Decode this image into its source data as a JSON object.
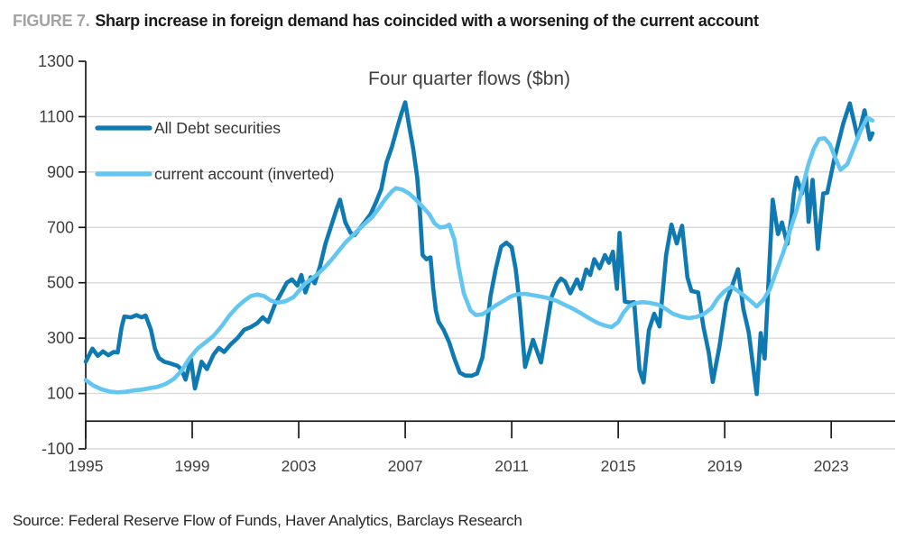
{
  "figure": {
    "label": "FIGURE 7.",
    "title": "Sharp increase in foreign demand has coincided with a worsening of the current account"
  },
  "source": "Source: Federal Reserve Flow of Funds, Haver Analytics, Barclays Research",
  "colors": {
    "dark_series": "#0f79b2",
    "light_series": "#62c6f0",
    "gridline": "#d9d9d9",
    "axis": "#1a1a1a",
    "tick_text": "#3f3f3f",
    "figure_label_gray": "#a3a3a3"
  },
  "chart_data": {
    "type": "line",
    "title": "Four quarter flows ($bn)",
    "xlabel": "",
    "ylabel": "",
    "x_axis": {
      "range": [
        1995,
        2025.4
      ],
      "ticks": [
        1995,
        1999,
        2003,
        2007,
        2011,
        2015,
        2019,
        2023
      ]
    },
    "y_axis": {
      "range": [
        -100,
        1300
      ],
      "ticks": [
        -100,
        100,
        300,
        500,
        700,
        900,
        1100,
        1300
      ],
      "gridlines": true,
      "zero_axis_line": true
    },
    "legend_position": "top-left-inside",
    "series": [
      {
        "name": "All Debt securities",
        "color": "#0f79b2",
        "points": [
          [
            1995.0,
            215
          ],
          [
            1995.25,
            262
          ],
          [
            1995.45,
            236
          ],
          [
            1995.65,
            252
          ],
          [
            1995.85,
            238
          ],
          [
            1996.05,
            250
          ],
          [
            1996.2,
            248
          ],
          [
            1996.35,
            340
          ],
          [
            1996.45,
            378
          ],
          [
            1996.7,
            375
          ],
          [
            1996.9,
            383
          ],
          [
            1997.1,
            375
          ],
          [
            1997.25,
            382
          ],
          [
            1997.45,
            330
          ],
          [
            1997.6,
            262
          ],
          [
            1997.75,
            228
          ],
          [
            1997.95,
            215
          ],
          [
            1998.2,
            208
          ],
          [
            1998.45,
            200
          ],
          [
            1998.6,
            186
          ],
          [
            1998.75,
            150
          ],
          [
            1998.95,
            225
          ],
          [
            1999.1,
            118
          ],
          [
            1999.35,
            215
          ],
          [
            1999.55,
            188
          ],
          [
            1999.8,
            240
          ],
          [
            2000.0,
            265
          ],
          [
            2000.2,
            250
          ],
          [
            2000.45,
            278
          ],
          [
            2000.7,
            300
          ],
          [
            2000.95,
            330
          ],
          [
            2001.2,
            340
          ],
          [
            2001.45,
            355
          ],
          [
            2001.65,
            375
          ],
          [
            2001.85,
            358
          ],
          [
            2002.1,
            420
          ],
          [
            2002.3,
            455
          ],
          [
            2002.55,
            500
          ],
          [
            2002.75,
            512
          ],
          [
            2002.95,
            490
          ],
          [
            2003.1,
            528
          ],
          [
            2003.25,
            465
          ],
          [
            2003.45,
            520
          ],
          [
            2003.6,
            498
          ],
          [
            2003.8,
            560
          ],
          [
            2004.0,
            640
          ],
          [
            2004.2,
            700
          ],
          [
            2004.4,
            760
          ],
          [
            2004.55,
            800
          ],
          [
            2004.75,
            718
          ],
          [
            2004.95,
            680
          ],
          [
            2005.1,
            672
          ],
          [
            2005.3,
            698
          ],
          [
            2005.5,
            722
          ],
          [
            2005.7,
            748
          ],
          [
            2005.9,
            790
          ],
          [
            2006.1,
            838
          ],
          [
            2006.3,
            935
          ],
          [
            2006.5,
            990
          ],
          [
            2006.7,
            1060
          ],
          [
            2006.85,
            1110
          ],
          [
            2007.0,
            1152
          ],
          [
            2007.15,
            1065
          ],
          [
            2007.3,
            985
          ],
          [
            2007.45,
            880
          ],
          [
            2007.55,
            760
          ],
          [
            2007.65,
            600
          ],
          [
            2007.8,
            585
          ],
          [
            2007.95,
            592
          ],
          [
            2008.05,
            480
          ],
          [
            2008.15,
            400
          ],
          [
            2008.25,
            360
          ],
          [
            2008.45,
            328
          ],
          [
            2008.65,
            285
          ],
          [
            2008.85,
            225
          ],
          [
            2009.05,
            175
          ],
          [
            2009.25,
            165
          ],
          [
            2009.5,
            164
          ],
          [
            2009.7,
            172
          ],
          [
            2009.9,
            230
          ],
          [
            2010.05,
            330
          ],
          [
            2010.2,
            450
          ],
          [
            2010.4,
            550
          ],
          [
            2010.6,
            630
          ],
          [
            2010.8,
            645
          ],
          [
            2011.0,
            628
          ],
          [
            2011.15,
            550
          ],
          [
            2011.3,
            420
          ],
          [
            2011.5,
            196
          ],
          [
            2011.8,
            294
          ],
          [
            2012.1,
            212
          ],
          [
            2012.3,
            330
          ],
          [
            2012.5,
            450
          ],
          [
            2012.7,
            498
          ],
          [
            2012.85,
            515
          ],
          [
            2013.0,
            505
          ],
          [
            2013.2,
            462
          ],
          [
            2013.45,
            512
          ],
          [
            2013.6,
            478
          ],
          [
            2013.8,
            548
          ],
          [
            2013.95,
            528
          ],
          [
            2014.1,
            585
          ],
          [
            2014.3,
            552
          ],
          [
            2014.5,
            600
          ],
          [
            2014.65,
            572
          ],
          [
            2014.8,
            612
          ],
          [
            2014.95,
            478
          ],
          [
            2015.05,
            680
          ],
          [
            2015.25,
            432
          ],
          [
            2015.45,
            428
          ],
          [
            2015.6,
            430
          ],
          [
            2015.8,
            186
          ],
          [
            2015.95,
            140
          ],
          [
            2016.15,
            328
          ],
          [
            2016.35,
            388
          ],
          [
            2016.55,
            342
          ],
          [
            2016.8,
            600
          ],
          [
            2017.0,
            710
          ],
          [
            2017.2,
            642
          ],
          [
            2017.4,
            706
          ],
          [
            2017.6,
            520
          ],
          [
            2017.75,
            470
          ],
          [
            2018.0,
            465
          ],
          [
            2018.2,
            340
          ],
          [
            2018.4,
            247
          ],
          [
            2018.55,
            142
          ],
          [
            2018.8,
            270
          ],
          [
            2019.05,
            428
          ],
          [
            2019.3,
            495
          ],
          [
            2019.5,
            549
          ],
          [
            2019.7,
            406
          ],
          [
            2019.9,
            322
          ],
          [
            2020.2,
            98
          ],
          [
            2020.35,
            318
          ],
          [
            2020.5,
            226
          ],
          [
            2020.8,
            800
          ],
          [
            2021.0,
            676
          ],
          [
            2021.15,
            718
          ],
          [
            2021.35,
            640
          ],
          [
            2021.5,
            730
          ],
          [
            2021.6,
            825
          ],
          [
            2021.7,
            880
          ],
          [
            2021.9,
            822
          ],
          [
            2022.05,
            885
          ],
          [
            2022.15,
            720
          ],
          [
            2022.3,
            872
          ],
          [
            2022.5,
            622
          ],
          [
            2022.7,
            822
          ],
          [
            2022.85,
            825
          ],
          [
            2023.1,
            940
          ],
          [
            2023.45,
            1075
          ],
          [
            2023.7,
            1148
          ],
          [
            2024.0,
            1022
          ],
          [
            2024.25,
            1123
          ],
          [
            2024.45,
            1018
          ],
          [
            2024.55,
            1040
          ]
        ]
      },
      {
        "name": "current account (inverted)",
        "color": "#62c6f0",
        "points": [
          [
            1995.0,
            148
          ],
          [
            1995.3,
            128
          ],
          [
            1995.6,
            115
          ],
          [
            1995.9,
            107
          ],
          [
            1996.2,
            104
          ],
          [
            1996.5,
            106
          ],
          [
            1996.8,
            111
          ],
          [
            1997.1,
            114
          ],
          [
            1997.4,
            119
          ],
          [
            1997.7,
            124
          ],
          [
            1998.0,
            134
          ],
          [
            1998.3,
            152
          ],
          [
            1998.6,
            182
          ],
          [
            1998.9,
            228
          ],
          [
            1999.2,
            262
          ],
          [
            1999.5,
            285
          ],
          [
            1999.8,
            308
          ],
          [
            2000.1,
            342
          ],
          [
            2000.4,
            382
          ],
          [
            2000.7,
            414
          ],
          [
            2000.95,
            435
          ],
          [
            2001.2,
            452
          ],
          [
            2001.45,
            458
          ],
          [
            2001.7,
            452
          ],
          [
            2001.95,
            436
          ],
          [
            2002.2,
            428
          ],
          [
            2002.5,
            433
          ],
          [
            2002.8,
            448
          ],
          [
            2003.0,
            470
          ],
          [
            2003.25,
            498
          ],
          [
            2003.5,
            515
          ],
          [
            2003.75,
            535
          ],
          [
            2004.0,
            558
          ],
          [
            2004.25,
            585
          ],
          [
            2004.5,
            615
          ],
          [
            2004.75,
            645
          ],
          [
            2005.0,
            668
          ],
          [
            2005.25,
            692
          ],
          [
            2005.5,
            715
          ],
          [
            2005.75,
            736
          ],
          [
            2006.0,
            768
          ],
          [
            2006.25,
            802
          ],
          [
            2006.5,
            830
          ],
          [
            2006.65,
            842
          ],
          [
            2006.9,
            836
          ],
          [
            2007.15,
            822
          ],
          [
            2007.4,
            800
          ],
          [
            2007.65,
            775
          ],
          [
            2007.9,
            748
          ],
          [
            2008.1,
            715
          ],
          [
            2008.3,
            700
          ],
          [
            2008.5,
            702
          ],
          [
            2008.65,
            710
          ],
          [
            2008.85,
            655
          ],
          [
            2009.0,
            560
          ],
          [
            2009.2,
            462
          ],
          [
            2009.45,
            400
          ],
          [
            2009.65,
            383
          ],
          [
            2009.9,
            386
          ],
          [
            2010.1,
            398
          ],
          [
            2010.4,
            418
          ],
          [
            2010.7,
            435
          ],
          [
            2010.95,
            450
          ],
          [
            2011.2,
            458
          ],
          [
            2011.5,
            460
          ],
          [
            2011.8,
            455
          ],
          [
            2012.1,
            450
          ],
          [
            2012.4,
            444
          ],
          [
            2012.7,
            434
          ],
          [
            2013.0,
            420
          ],
          [
            2013.3,
            406
          ],
          [
            2013.6,
            390
          ],
          [
            2013.9,
            372
          ],
          [
            2014.2,
            356
          ],
          [
            2014.5,
            345
          ],
          [
            2014.75,
            340
          ],
          [
            2015.0,
            358
          ],
          [
            2015.2,
            392
          ],
          [
            2015.4,
            415
          ],
          [
            2015.65,
            426
          ],
          [
            2015.9,
            430
          ],
          [
            2016.2,
            427
          ],
          [
            2016.5,
            421
          ],
          [
            2016.8,
            405
          ],
          [
            2017.05,
            388
          ],
          [
            2017.35,
            378
          ],
          [
            2017.65,
            372
          ],
          [
            2017.95,
            377
          ],
          [
            2018.2,
            386
          ],
          [
            2018.5,
            408
          ],
          [
            2018.75,
            445
          ],
          [
            2019.0,
            470
          ],
          [
            2019.25,
            486
          ],
          [
            2019.5,
            470
          ],
          [
            2019.75,
            452
          ],
          [
            2020.0,
            432
          ],
          [
            2020.2,
            414
          ],
          [
            2020.45,
            438
          ],
          [
            2020.7,
            478
          ],
          [
            2020.95,
            545
          ],
          [
            2021.2,
            610
          ],
          [
            2021.45,
            688
          ],
          [
            2021.7,
            762
          ],
          [
            2021.95,
            855
          ],
          [
            2022.15,
            930
          ],
          [
            2022.35,
            985
          ],
          [
            2022.55,
            1020
          ],
          [
            2022.75,
            1022
          ],
          [
            2022.95,
            1000
          ],
          [
            2023.15,
            952
          ],
          [
            2023.35,
            908
          ],
          [
            2023.6,
            928
          ],
          [
            2023.85,
            988
          ],
          [
            2024.1,
            1048
          ],
          [
            2024.35,
            1096
          ],
          [
            2024.55,
            1086
          ]
        ]
      }
    ]
  }
}
